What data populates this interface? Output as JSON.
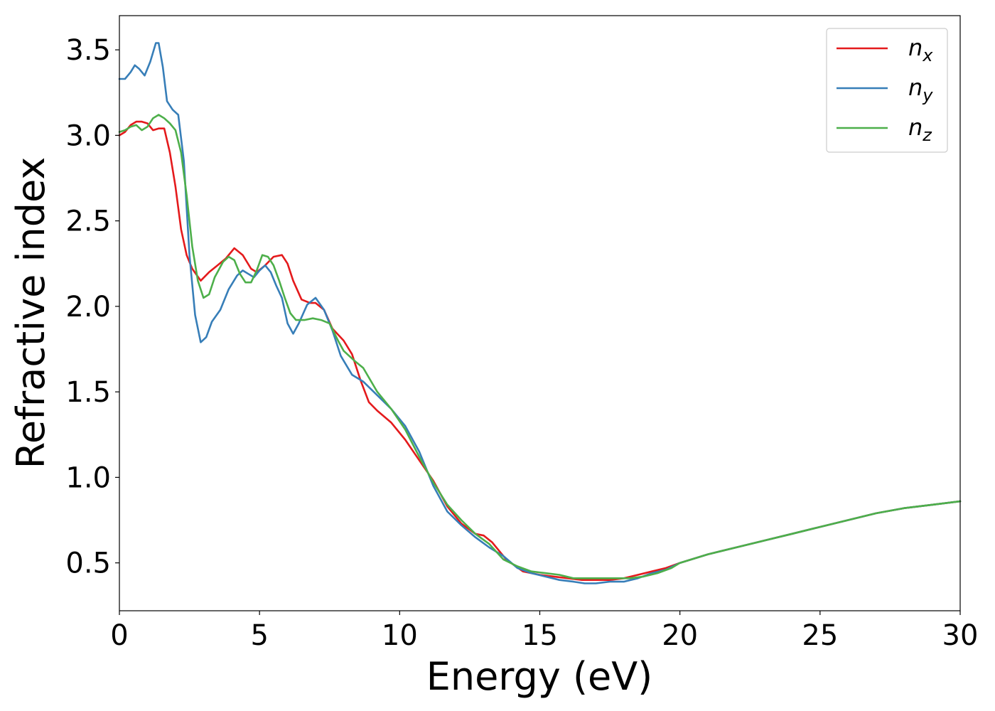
{
  "chart_data": {
    "type": "line",
    "title": "",
    "xlabel": "Energy (eV)",
    "ylabel": "Refractive index",
    "xlim": [
      0,
      30
    ],
    "ylim": [
      0.22,
      3.7
    ],
    "xticks": [
      0,
      5,
      10,
      15,
      20,
      25,
      30
    ],
    "xtick_labels": [
      "0",
      "5",
      "10",
      "15",
      "20",
      "25",
      "30"
    ],
    "yticks": [
      0.5,
      1.0,
      1.5,
      2.0,
      2.5,
      3.0,
      3.5
    ],
    "ytick_labels": [
      "0.5",
      "1.0",
      "1.5",
      "2.0",
      "2.5",
      "3.0",
      "3.5"
    ],
    "grid": false,
    "legend_position": "top-right",
    "series": [
      {
        "name": "n_x",
        "label_main": "n",
        "label_sub": "x",
        "color": "#e41a1c",
        "points": [
          [
            0,
            3.0
          ],
          [
            0.2,
            3.02
          ],
          [
            0.4,
            3.06
          ],
          [
            0.6,
            3.08
          ],
          [
            0.8,
            3.08
          ],
          [
            1.0,
            3.07
          ],
          [
            1.2,
            3.03
          ],
          [
            1.4,
            3.04
          ],
          [
            1.6,
            3.04
          ],
          [
            1.8,
            2.9
          ],
          [
            2.0,
            2.7
          ],
          [
            2.2,
            2.45
          ],
          [
            2.4,
            2.3
          ],
          [
            2.6,
            2.22
          ],
          [
            2.9,
            2.15
          ],
          [
            3.2,
            2.2
          ],
          [
            3.5,
            2.24
          ],
          [
            3.8,
            2.28
          ],
          [
            4.1,
            2.34
          ],
          [
            4.4,
            2.3
          ],
          [
            4.7,
            2.22
          ],
          [
            4.9,
            2.2
          ],
          [
            5.2,
            2.24
          ],
          [
            5.5,
            2.29
          ],
          [
            5.8,
            2.3
          ],
          [
            6.0,
            2.25
          ],
          [
            6.2,
            2.15
          ],
          [
            6.5,
            2.04
          ],
          [
            6.8,
            2.02
          ],
          [
            7.0,
            2.02
          ],
          [
            7.3,
            1.98
          ],
          [
            7.6,
            1.87
          ],
          [
            8.0,
            1.8
          ],
          [
            8.3,
            1.72
          ],
          [
            8.6,
            1.57
          ],
          [
            8.9,
            1.44
          ],
          [
            9.2,
            1.39
          ],
          [
            9.7,
            1.32
          ],
          [
            10.2,
            1.22
          ],
          [
            10.7,
            1.1
          ],
          [
            11.2,
            0.98
          ],
          [
            11.7,
            0.83
          ],
          [
            12.2,
            0.73
          ],
          [
            12.7,
            0.67
          ],
          [
            13.0,
            0.66
          ],
          [
            13.3,
            0.62
          ],
          [
            13.8,
            0.52
          ],
          [
            14.4,
            0.45
          ],
          [
            15.0,
            0.43
          ],
          [
            15.5,
            0.42
          ],
          [
            16.0,
            0.41
          ],
          [
            16.5,
            0.4
          ],
          [
            17.0,
            0.4
          ],
          [
            17.5,
            0.4
          ],
          [
            18.0,
            0.41
          ],
          [
            18.5,
            0.43
          ],
          [
            19.0,
            0.45
          ],
          [
            19.5,
            0.47
          ],
          [
            20.0,
            0.5
          ],
          [
            21.0,
            0.55
          ],
          [
            22.0,
            0.59
          ],
          [
            23.0,
            0.63
          ],
          [
            24.0,
            0.67
          ],
          [
            25.0,
            0.71
          ],
          [
            26.0,
            0.75
          ],
          [
            27.0,
            0.79
          ],
          [
            28.0,
            0.82
          ],
          [
            29.0,
            0.84
          ],
          [
            30.0,
            0.86
          ]
        ]
      },
      {
        "name": "n_y",
        "label_main": "n",
        "label_sub": "y",
        "color": "#377eb8",
        "points": [
          [
            0,
            3.33
          ],
          [
            0.2,
            3.33
          ],
          [
            0.4,
            3.37
          ],
          [
            0.55,
            3.41
          ],
          [
            0.7,
            3.39
          ],
          [
            0.9,
            3.35
          ],
          [
            1.1,
            3.43
          ],
          [
            1.3,
            3.54
          ],
          [
            1.4,
            3.54
          ],
          [
            1.55,
            3.4
          ],
          [
            1.7,
            3.2
          ],
          [
            1.9,
            3.15
          ],
          [
            2.1,
            3.12
          ],
          [
            2.3,
            2.85
          ],
          [
            2.5,
            2.3
          ],
          [
            2.7,
            1.95
          ],
          [
            2.9,
            1.79
          ],
          [
            3.1,
            1.82
          ],
          [
            3.3,
            1.91
          ],
          [
            3.6,
            1.98
          ],
          [
            3.9,
            2.1
          ],
          [
            4.2,
            2.18
          ],
          [
            4.4,
            2.21
          ],
          [
            4.6,
            2.19
          ],
          [
            4.8,
            2.17
          ],
          [
            5.0,
            2.21
          ],
          [
            5.2,
            2.24
          ],
          [
            5.4,
            2.2
          ],
          [
            5.6,
            2.12
          ],
          [
            5.8,
            2.05
          ],
          [
            6.0,
            1.9
          ],
          [
            6.2,
            1.84
          ],
          [
            6.4,
            1.9
          ],
          [
            6.7,
            2.01
          ],
          [
            7.0,
            2.05
          ],
          [
            7.3,
            1.98
          ],
          [
            7.6,
            1.86
          ],
          [
            7.9,
            1.71
          ],
          [
            8.3,
            1.6
          ],
          [
            8.7,
            1.56
          ],
          [
            9.2,
            1.48
          ],
          [
            9.7,
            1.4
          ],
          [
            10.2,
            1.3
          ],
          [
            10.7,
            1.15
          ],
          [
            11.2,
            0.95
          ],
          [
            11.7,
            0.8
          ],
          [
            12.2,
            0.72
          ],
          [
            12.7,
            0.65
          ],
          [
            13.2,
            0.59
          ],
          [
            13.7,
            0.54
          ],
          [
            14.2,
            0.47
          ],
          [
            14.7,
            0.44
          ],
          [
            15.2,
            0.42
          ],
          [
            15.7,
            0.4
          ],
          [
            16.2,
            0.39
          ],
          [
            16.6,
            0.38
          ],
          [
            17.0,
            0.38
          ],
          [
            17.5,
            0.39
          ],
          [
            18.0,
            0.39
          ],
          [
            18.5,
            0.41
          ],
          [
            19.0,
            0.44
          ],
          [
            19.5,
            0.46
          ],
          [
            20.0,
            0.5
          ],
          [
            21.0,
            0.55
          ],
          [
            22.0,
            0.59
          ],
          [
            23.0,
            0.63
          ],
          [
            24.0,
            0.67
          ],
          [
            25.0,
            0.71
          ],
          [
            26.0,
            0.75
          ],
          [
            27.0,
            0.79
          ],
          [
            28.0,
            0.82
          ],
          [
            29.0,
            0.84
          ],
          [
            30.0,
            0.86
          ]
        ]
      },
      {
        "name": "n_z",
        "label_main": "n",
        "label_sub": "z",
        "color": "#4daf4a",
        "points": [
          [
            0,
            3.02
          ],
          [
            0.2,
            3.03
          ],
          [
            0.4,
            3.05
          ],
          [
            0.6,
            3.06
          ],
          [
            0.8,
            3.03
          ],
          [
            1.0,
            3.05
          ],
          [
            1.2,
            3.1
          ],
          [
            1.4,
            3.12
          ],
          [
            1.6,
            3.1
          ],
          [
            1.8,
            3.07
          ],
          [
            2.0,
            3.03
          ],
          [
            2.2,
            2.9
          ],
          [
            2.4,
            2.65
          ],
          [
            2.6,
            2.35
          ],
          [
            2.8,
            2.15
          ],
          [
            3.0,
            2.05
          ],
          [
            3.2,
            2.07
          ],
          [
            3.4,
            2.17
          ],
          [
            3.7,
            2.26
          ],
          [
            3.9,
            2.29
          ],
          [
            4.1,
            2.27
          ],
          [
            4.3,
            2.19
          ],
          [
            4.5,
            2.14
          ],
          [
            4.7,
            2.14
          ],
          [
            4.9,
            2.21
          ],
          [
            5.1,
            2.3
          ],
          [
            5.3,
            2.29
          ],
          [
            5.5,
            2.24
          ],
          [
            5.7,
            2.15
          ],
          [
            5.9,
            2.05
          ],
          [
            6.1,
            1.96
          ],
          [
            6.3,
            1.92
          ],
          [
            6.6,
            1.92
          ],
          [
            6.9,
            1.93
          ],
          [
            7.2,
            1.92
          ],
          [
            7.5,
            1.9
          ],
          [
            7.8,
            1.8
          ],
          [
            8.0,
            1.74
          ],
          [
            8.4,
            1.68
          ],
          [
            8.7,
            1.64
          ],
          [
            9.2,
            1.5
          ],
          [
            9.7,
            1.4
          ],
          [
            10.2,
            1.28
          ],
          [
            10.7,
            1.12
          ],
          [
            11.2,
            0.97
          ],
          [
            11.7,
            0.84
          ],
          [
            12.2,
            0.75
          ],
          [
            12.7,
            0.67
          ],
          [
            13.2,
            0.61
          ],
          [
            13.7,
            0.52
          ],
          [
            14.2,
            0.48
          ],
          [
            14.7,
            0.45
          ],
          [
            15.2,
            0.44
          ],
          [
            15.7,
            0.43
          ],
          [
            16.2,
            0.41
          ],
          [
            16.7,
            0.41
          ],
          [
            17.2,
            0.41
          ],
          [
            17.7,
            0.41
          ],
          [
            18.2,
            0.41
          ],
          [
            18.7,
            0.42
          ],
          [
            19.2,
            0.44
          ],
          [
            19.7,
            0.47
          ],
          [
            20.0,
            0.5
          ],
          [
            21.0,
            0.55
          ],
          [
            22.0,
            0.59
          ],
          [
            23.0,
            0.63
          ],
          [
            24.0,
            0.67
          ],
          [
            25.0,
            0.71
          ],
          [
            26.0,
            0.75
          ],
          [
            27.0,
            0.79
          ],
          [
            28.0,
            0.82
          ],
          [
            29.0,
            0.84
          ],
          [
            30.0,
            0.86
          ]
        ]
      }
    ]
  }
}
